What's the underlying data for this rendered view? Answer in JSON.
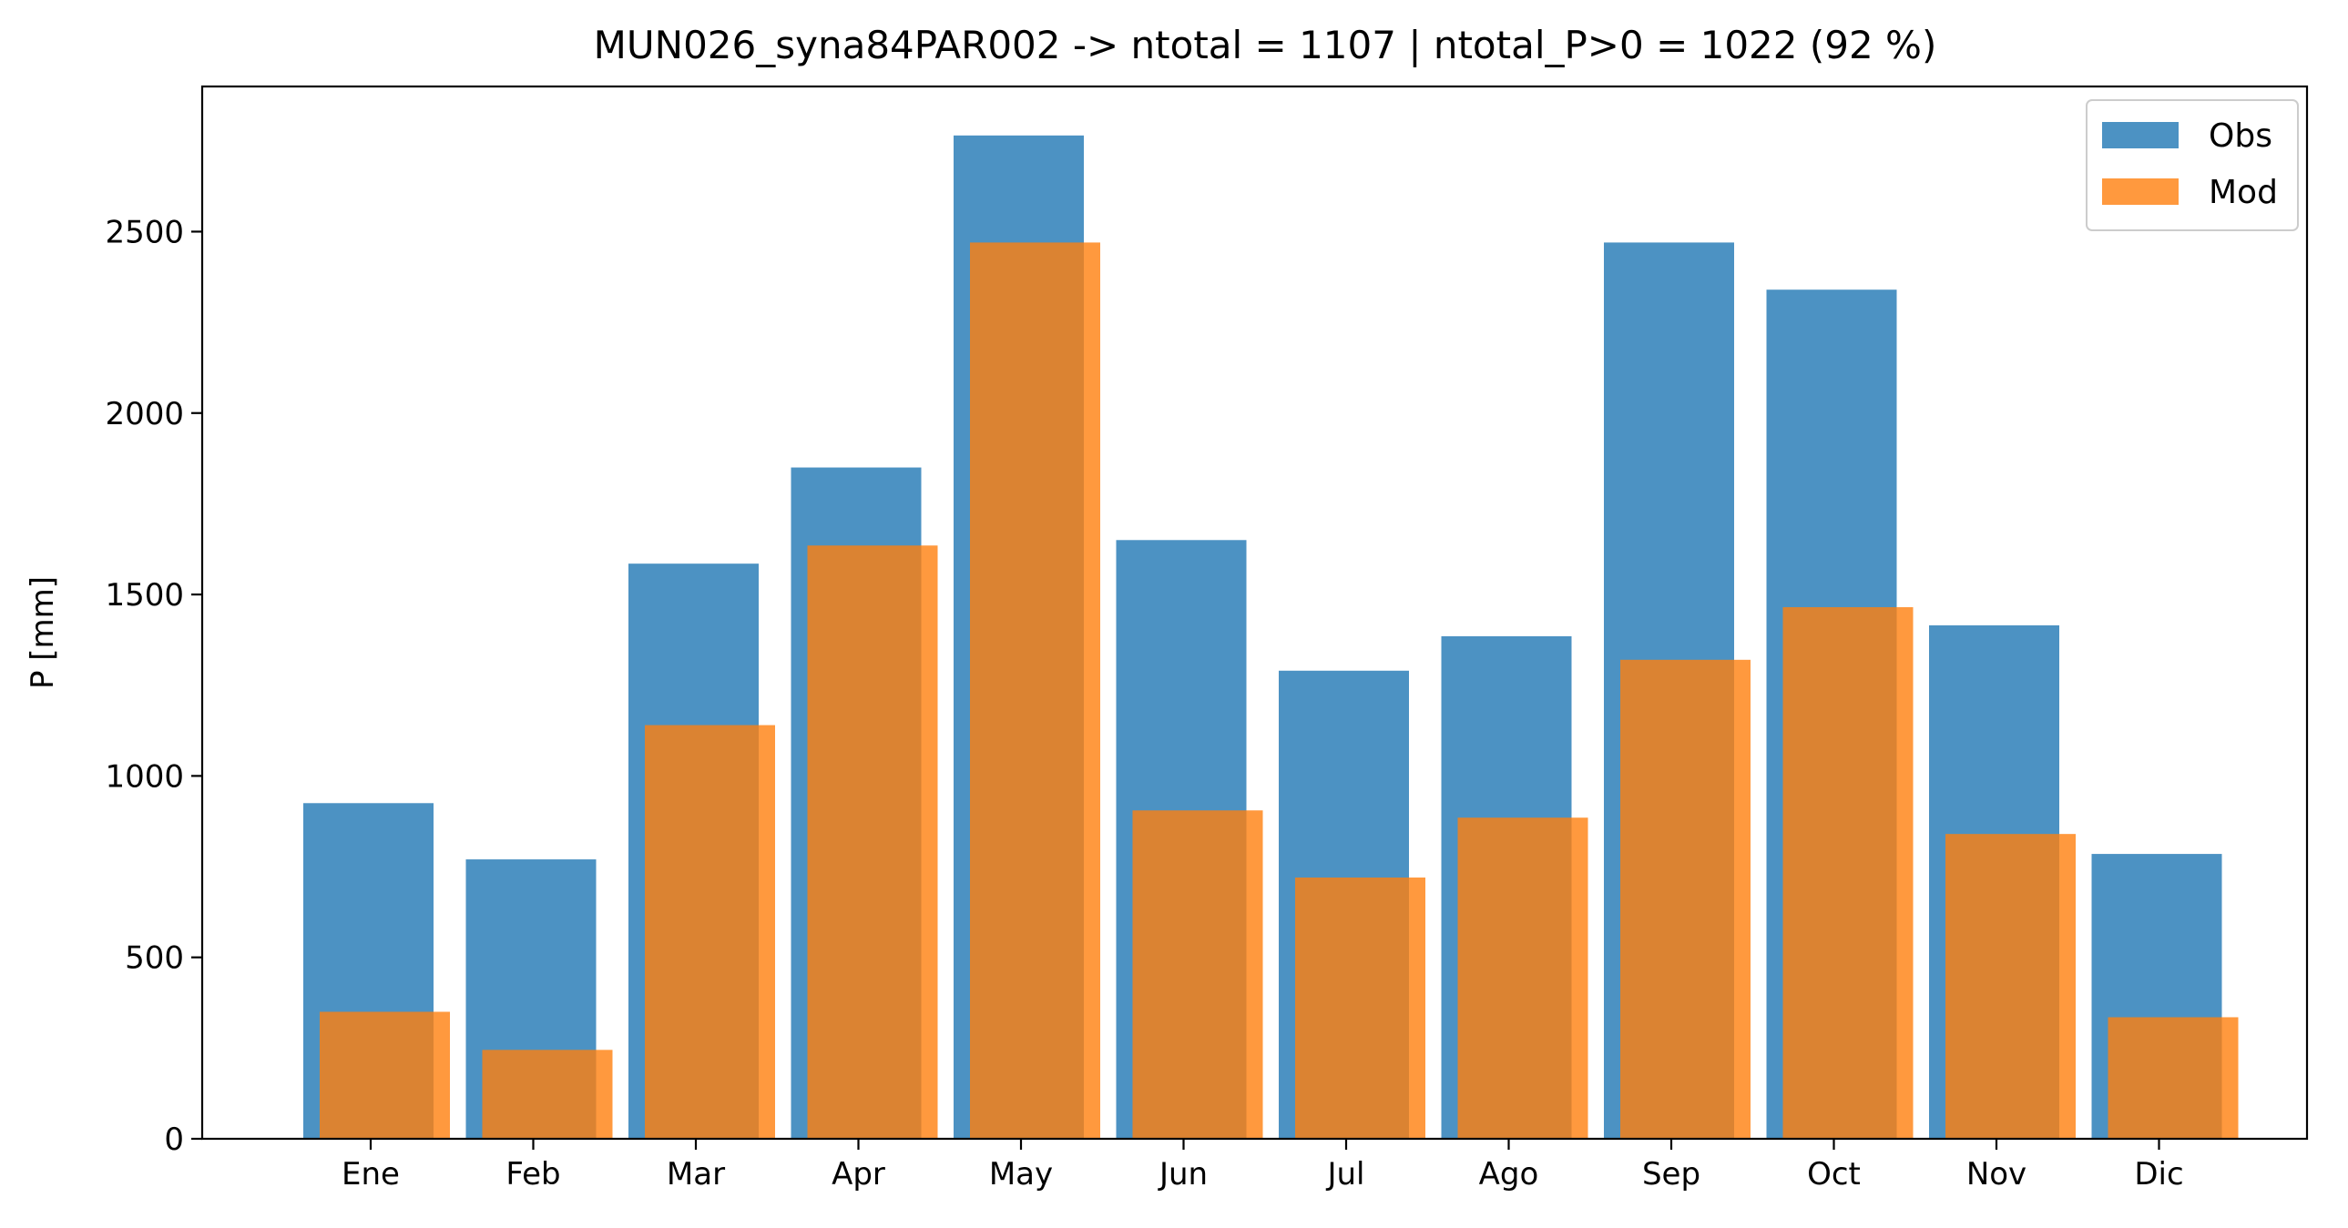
{
  "chart_data": {
    "type": "bar",
    "title": "MUN026_syna84PAR002 -> ntotal = 1107 | ntotal_P>0 = 1022 (92 %)",
    "xlabel": "",
    "ylabel": "P [mm]",
    "categories": [
      "Ene",
      "Feb",
      "Mar",
      "Apr",
      "May",
      "Jun",
      "Jul",
      "Ago",
      "Sep",
      "Oct",
      "Nov",
      "Dic"
    ],
    "ylim": [
      0,
      2900
    ],
    "yticks": [
      0,
      500,
      1000,
      1500,
      2000,
      2500
    ],
    "series": [
      {
        "name": "Obs",
        "color": "#1f77b4",
        "values": [
          925,
          770,
          1585,
          1850,
          2765,
          1650,
          1290,
          1385,
          2470,
          2340,
          1415,
          785
        ]
      },
      {
        "name": "Mod",
        "color": "#ff7f0e",
        "values": [
          350,
          245,
          1140,
          1635,
          2470,
          905,
          720,
          885,
          1320,
          1465,
          840,
          335
        ]
      }
    ],
    "legend_position": "top-right",
    "grid": false
  }
}
